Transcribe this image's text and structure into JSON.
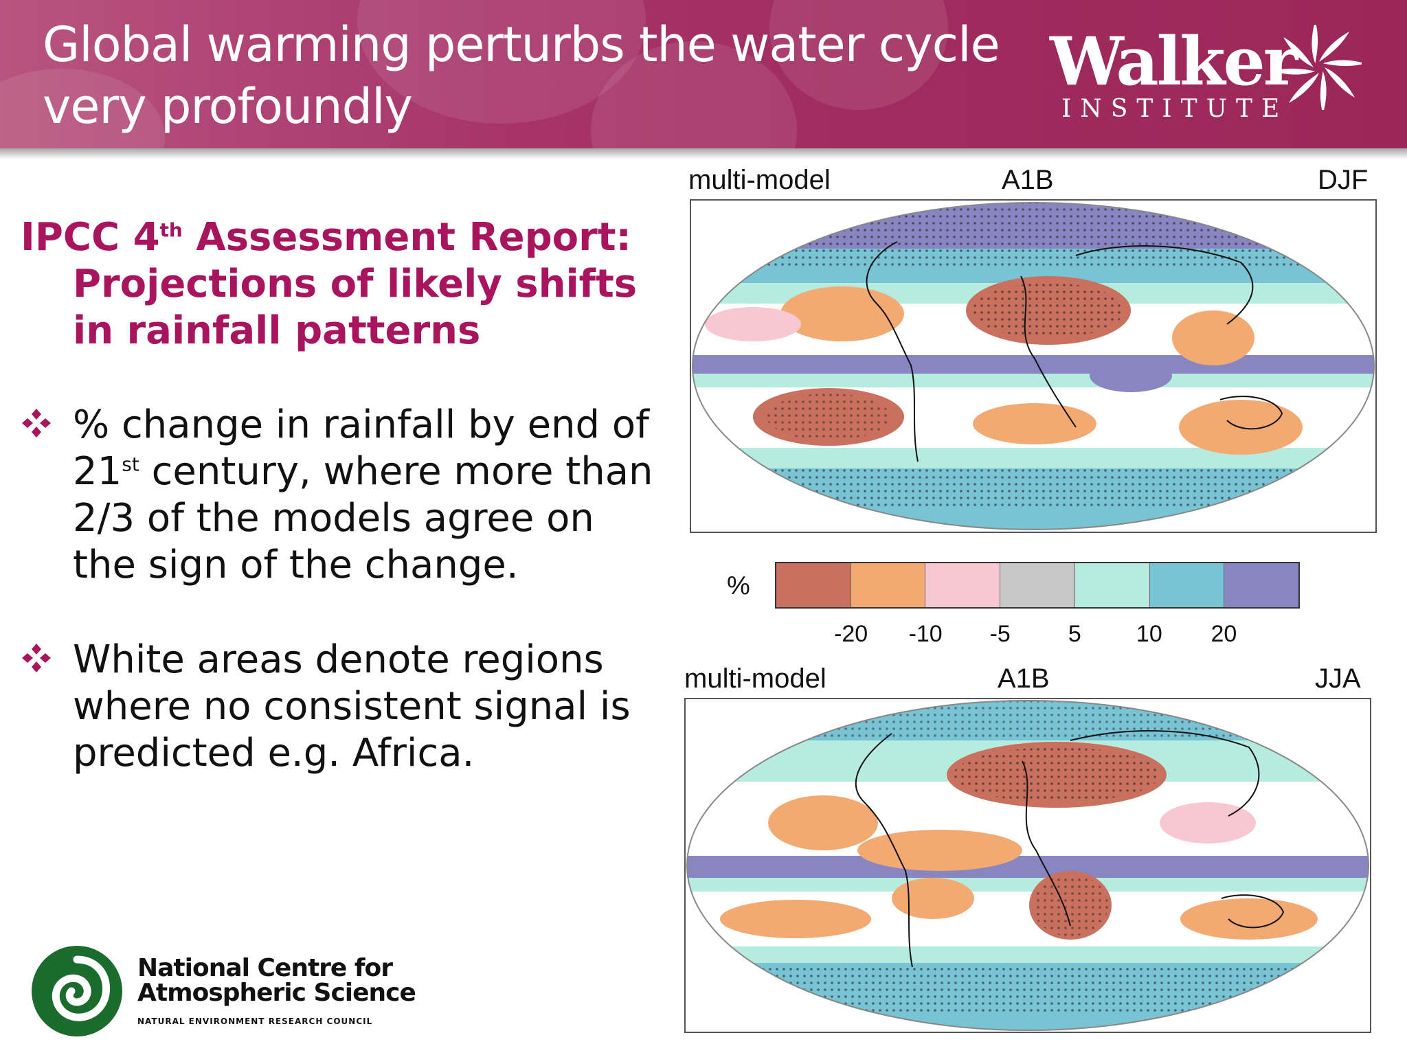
{
  "header": {
    "title_line1": "Global warming perturbs the water cycle",
    "title_line2": "very profoundly",
    "logo_name": "Walker",
    "logo_subtitle": "INSTITUTE"
  },
  "content": {
    "heading": {
      "line1_pre": "IPCC 4",
      "line1_sup": "th",
      "line1_post": " Assessment Report:",
      "line2": "Projections of likely shifts",
      "line3": "in rainfall patterns"
    },
    "bullets": [
      {
        "part1": "% change in rainfall by end of 21",
        "sup": "st",
        "part2": " century, where more than 2/3 of the models agree on the sign of the change."
      },
      {
        "text": "White areas denote regions where no consistent signal is predicted e.g. Africa."
      }
    ]
  },
  "maps": [
    {
      "left": "multi-model",
      "center": "A1B",
      "right": "DJF"
    },
    {
      "left": "multi-model",
      "center": "A1B",
      "right": "JJA"
    }
  ],
  "scale": {
    "unit": "%",
    "colors": [
      "#c9705e",
      "#f2aa72",
      "#f7c8cf",
      "#c8c8c8",
      "#b6ece0",
      "#78c3d4",
      "#8786c2"
    ],
    "ticks": [
      "-20",
      "-10",
      "-5",
      "5",
      "10",
      "20"
    ]
  },
  "footer_logo": {
    "name_line1": "National Centre for",
    "name_line2": "Atmospheric Science",
    "subtitle": "NATURAL ENVIRONMENT RESEARCH COUNCIL"
  }
}
